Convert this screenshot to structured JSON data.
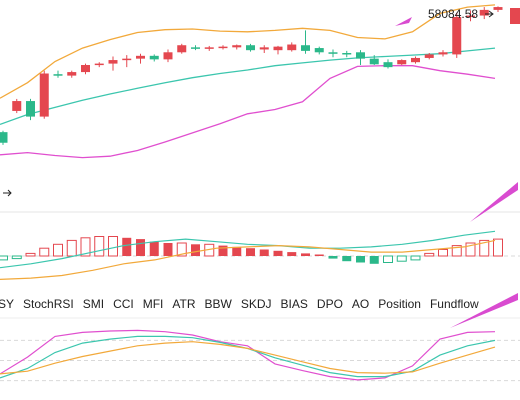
{
  "price_label": "58084.58",
  "indicator_tabs": [
    "SY",
    "StochRSI",
    "SMI",
    "CCI",
    "MFI",
    "ATR",
    "BBW",
    "SKDJ",
    "BIAS",
    "DPO",
    "AO",
    "Position",
    "Fundflow"
  ],
  "colors": {
    "up": "#2bb88a",
    "down": "#e4474f",
    "upper_band": "#f2a93b",
    "middle_band": "#3cc6ae",
    "lower_band": "#e04fcf",
    "arrow": "#d94bd0",
    "grid": "#d9d9d9"
  },
  "chart_data": [
    {
      "type": "candlestick",
      "overlays": [
        "upper-band",
        "middle-band",
        "lower-band"
      ],
      "candles": [
        {
          "o": 113,
          "h": 115,
          "l": 95,
          "c": 98
        },
        {
          "o": 143,
          "h": 160,
          "l": 140,
          "c": 157
        },
        {
          "o": 157,
          "h": 160,
          "l": 130,
          "c": 135
        },
        {
          "o": 135,
          "h": 200,
          "l": 132,
          "c": 196
        },
        {
          "o": 195,
          "h": 200,
          "l": 190,
          "c": 193
        },
        {
          "o": 193,
          "h": 200,
          "l": 190,
          "c": 198
        },
        {
          "o": 198,
          "h": 210,
          "l": 195,
          "c": 208
        },
        {
          "o": 208,
          "h": 212,
          "l": 205,
          "c": 210
        },
        {
          "o": 210,
          "h": 220,
          "l": 200,
          "c": 215
        },
        {
          "o": 215,
          "h": 222,
          "l": 205,
          "c": 217
        },
        {
          "o": 217,
          "h": 224,
          "l": 210,
          "c": 221
        },
        {
          "o": 221,
          "h": 223,
          "l": 213,
          "c": 216
        },
        {
          "o": 216,
          "h": 230,
          "l": 212,
          "c": 226
        },
        {
          "o": 226,
          "h": 238,
          "l": 224,
          "c": 236
        },
        {
          "o": 233,
          "h": 236,
          "l": 229,
          "c": 231
        },
        {
          "o": 231,
          "h": 235,
          "l": 228,
          "c": 233
        },
        {
          "o": 233,
          "h": 236,
          "l": 230,
          "c": 234
        },
        {
          "o": 233,
          "h": 237,
          "l": 230,
          "c": 236
        },
        {
          "o": 236,
          "h": 238,
          "l": 227,
          "c": 229
        },
        {
          "o": 230,
          "h": 236,
          "l": 225,
          "c": 233
        },
        {
          "o": 229,
          "h": 235,
          "l": 223,
          "c": 234
        },
        {
          "o": 229,
          "h": 240,
          "l": 227,
          "c": 237
        },
        {
          "o": 236,
          "h": 257,
          "l": 224,
          "c": 228
        },
        {
          "o": 232,
          "h": 234,
          "l": 223,
          "c": 226
        },
        {
          "o": 226,
          "h": 230,
          "l": 219,
          "c": 225
        },
        {
          "o": 225,
          "h": 228,
          "l": 219,
          "c": 224
        },
        {
          "o": 226,
          "h": 229,
          "l": 208,
          "c": 217
        },
        {
          "o": 217,
          "h": 222,
          "l": 208,
          "c": 209
        },
        {
          "o": 212,
          "h": 216,
          "l": 203,
          "c": 205
        },
        {
          "o": 209,
          "h": 216,
          "l": 208,
          "c": 215
        },
        {
          "o": 212,
          "h": 220,
          "l": 210,
          "c": 218
        },
        {
          "o": 218,
          "h": 225,
          "l": 216,
          "c": 223
        },
        {
          "o": 223,
          "h": 229,
          "l": 220,
          "c": 226
        },
        {
          "o": 223,
          "h": 282,
          "l": 218,
          "c": 276
        },
        {
          "o": 276,
          "h": 285,
          "l": 270,
          "c": 278
        },
        {
          "o": 278,
          "h": 290,
          "l": 273,
          "c": 286
        },
        {
          "o": 286,
          "h": 291,
          "l": 283,
          "c": 290
        }
      ],
      "upper_band": [
        161,
        183,
        213,
        232,
        244,
        254,
        258,
        259,
        256,
        255,
        257,
        260,
        257,
        247,
        245,
        255,
        281,
        290,
        293
      ],
      "middle_band": [
        124,
        138,
        148,
        158,
        167,
        175,
        183,
        190,
        196,
        201,
        207,
        211,
        215,
        218,
        220,
        222,
        224,
        228,
        232
      ],
      "lower_band": [
        81,
        84,
        80,
        77,
        79,
        87,
        99,
        112,
        125,
        139,
        145,
        156,
        189,
        206,
        207,
        207,
        200,
        195,
        189
      ]
    },
    {
      "type": "bar",
      "series": [
        {
          "values": [
            -0.3,
            -0.2,
            0.2,
            0.6,
            0.9,
            1.2,
            1.4,
            1.5,
            1.5,
            1.4,
            1.3,
            1.1,
            1.0,
            1.0,
            0.9,
            0.9,
            0.8,
            0.7,
            0.6,
            0.5,
            0.4,
            0.3,
            0.2,
            0.1,
            -0.2,
            -0.4,
            -0.5,
            -0.6,
            -0.5,
            -0.4,
            -0.3,
            0.2,
            0.5,
            0.8,
            1.0,
            1.2,
            1.3
          ]
        },
        {
          "values": [
            -0.9,
            -0.6,
            -0.2,
            0.3,
            0.8,
            1.1,
            1.3,
            1.1,
            0.9,
            0.8,
            0.6,
            0.6,
            0.7,
            0.9,
            1.2,
            1.6,
            1.9
          ]
        },
        {
          "values": [
            -1.8,
            -1.7,
            -1.5,
            -1.1,
            -0.6,
            -0.3,
            0.2,
            0.6,
            0.7,
            0.8,
            0.7,
            0.5,
            0.3,
            0.3,
            0.5,
            0.7,
            1.2
          ]
        }
      ]
    },
    {
      "type": "line",
      "series": [
        {
          "values": [
            30,
            55,
            86,
            92,
            94,
            95,
            93,
            88,
            78,
            72,
            45,
            35,
            26,
            21,
            24,
            42,
            82,
            92,
            93
          ]
        },
        {
          "values": [
            24,
            38,
            62,
            76,
            82,
            86,
            86,
            84,
            77,
            68,
            54,
            43,
            32,
            26,
            26,
            34,
            58,
            72,
            80
          ]
        },
        {
          "values": [
            30,
            34,
            46,
            56,
            64,
            72,
            76,
            78,
            74,
            68,
            58,
            48,
            38,
            32,
            31,
            33,
            46,
            58,
            70
          ]
        }
      ]
    }
  ]
}
